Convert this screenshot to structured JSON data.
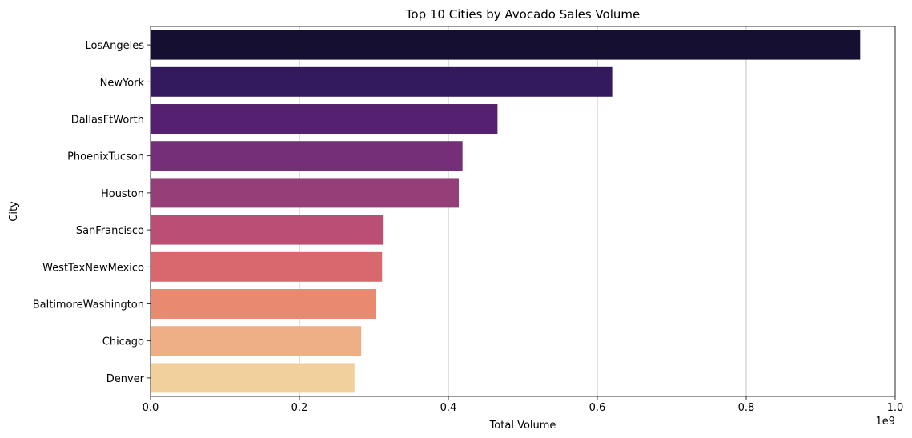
{
  "chart_data": {
    "type": "bar",
    "orientation": "horizontal",
    "title": "Top 10 Cities by Avocado Sales Volume",
    "xlabel": "Total Volume",
    "ylabel": "City",
    "x_scale_note": "1e9",
    "xlim": [
      0,
      1.0
    ],
    "xticks": [
      "0.0",
      "0.2",
      "0.4",
      "0.6",
      "0.8",
      "1.0"
    ],
    "grid": "vertical",
    "categories": [
      "LosAngeles",
      "NewYork",
      "DallasFtWorth",
      "PhoenixTucson",
      "Houston",
      "SanFrancisco",
      "WestTexNewMexico",
      "BaltimoreWashington",
      "Chicago",
      "Denver"
    ],
    "values": [
      0.953,
      0.62,
      0.466,
      0.419,
      0.414,
      0.312,
      0.311,
      0.303,
      0.283,
      0.274
    ],
    "colors": [
      "#150f31",
      "#331a5e",
      "#55206f",
      "#742f78",
      "#943f77",
      "#bb4e74",
      "#d9676e",
      "#e78a70",
      "#edaf83",
      "#f1d09c"
    ]
  }
}
